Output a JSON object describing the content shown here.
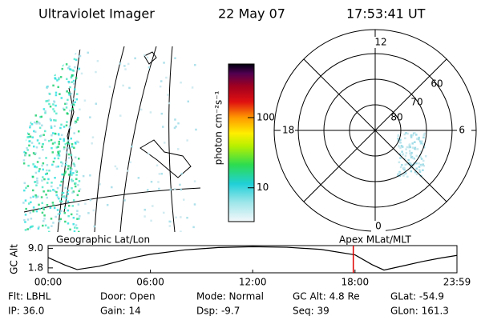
{
  "header": {
    "instrument": "Ultraviolet Imager",
    "date": "22 May 07",
    "time": "17:53:41 UT"
  },
  "colorbar": {
    "label": "photon cm⁻²s⁻¹",
    "lim": [
      3.3,
      580
    ],
    "log": true,
    "ticks": [
      100,
      10
    ]
  },
  "polar": {
    "mlt_labels": [
      "12",
      "18",
      "6",
      "0"
    ],
    "lat_labels": [
      "60",
      "70",
      "80"
    ]
  },
  "panel_labels": {
    "left": "Geographic Lat/Lon",
    "right": "Apex MLat/MLT"
  },
  "chart_data": {
    "type": "line",
    "ylabel": "GC Alt",
    "x": [
      0,
      1,
      1.7,
      3,
      4,
      5,
      6,
      8,
      10,
      12,
      14,
      16,
      18,
      19,
      19.7,
      21,
      22,
      23,
      23.98
    ],
    "values": [
      5.6,
      2.8,
      1.2,
      2.4,
      4,
      5.6,
      6.8,
      8.4,
      9.3,
      9.6,
      9.4,
      8.6,
      6.6,
      3,
      1.0,
      2.8,
      4.2,
      5.4,
      6.4
    ],
    "color": "#000000",
    "xlim": [
      0,
      23.98
    ],
    "ylim": [
      0,
      10
    ],
    "xticks": [
      {
        "value": 0,
        "label": "00:00"
      },
      {
        "value": 6,
        "label": "06:00"
      },
      {
        "value": 12,
        "label": "12:00"
      },
      {
        "value": 18,
        "label": "18:00"
      },
      {
        "value": 23.98,
        "label": "23:59"
      }
    ],
    "yticks": [
      {
        "value": 9,
        "label": "9.0"
      },
      {
        "value": 1.8,
        "label": "1.8"
      }
    ],
    "marker": 17.9,
    "marker_color": "#e00000"
  },
  "info": {
    "rows": [
      [
        "Flt: LBHL",
        "Door: Open",
        "Mode: Normal",
        "GC Alt: 4.8 Re",
        "GLat: -54.9"
      ],
      [
        "IP: 36.0",
        "Gain: 14",
        "Dsp: -9.7",
        "Seq: 39",
        "GLon: 161.3"
      ]
    ]
  }
}
